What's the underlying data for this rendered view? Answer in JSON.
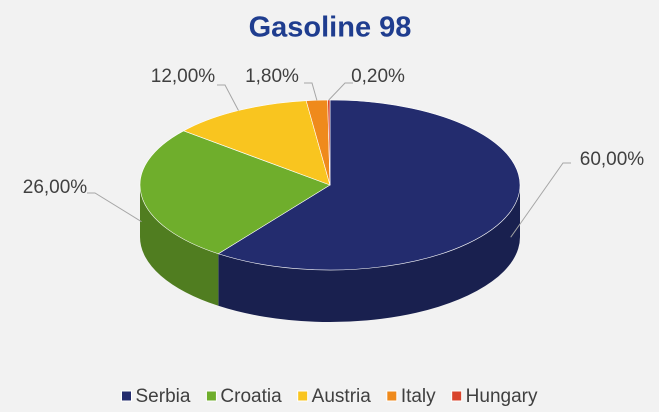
{
  "chart_data": {
    "type": "pie3d",
    "title": "Gasoline 98",
    "categories": [
      "Serbia",
      "Croatia",
      "Austria",
      "Italy",
      "Hungary"
    ],
    "values": [
      60,
      26,
      12,
      1.8,
      0.2
    ],
    "value_labels": [
      "60,00%",
      "26,00%",
      "12,00%",
      "1,80%",
      "0,20%"
    ],
    "colors": [
      "#232c6e",
      "#6fae2c",
      "#f9c51f",
      "#ef8a1c",
      "#d9452d"
    ],
    "legend": "bottom"
  }
}
